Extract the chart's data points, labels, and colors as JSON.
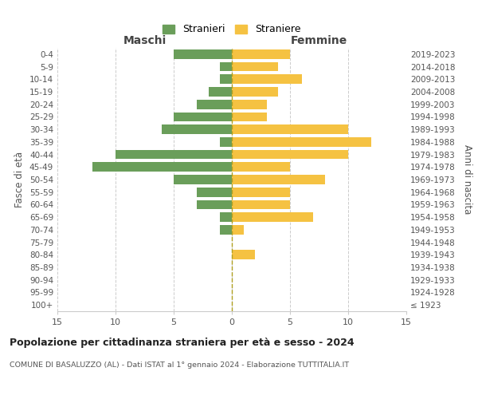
{
  "age_groups": [
    "100+",
    "95-99",
    "90-94",
    "85-89",
    "80-84",
    "75-79",
    "70-74",
    "65-69",
    "60-64",
    "55-59",
    "50-54",
    "45-49",
    "40-44",
    "35-39",
    "30-34",
    "25-29",
    "20-24",
    "15-19",
    "10-14",
    "5-9",
    "0-4"
  ],
  "birth_years": [
    "≤ 1923",
    "1924-1928",
    "1929-1933",
    "1934-1938",
    "1939-1943",
    "1944-1948",
    "1949-1953",
    "1954-1958",
    "1959-1963",
    "1964-1968",
    "1969-1973",
    "1974-1978",
    "1979-1983",
    "1984-1988",
    "1989-1993",
    "1994-1998",
    "1999-2003",
    "2004-2008",
    "2009-2013",
    "2014-2018",
    "2019-2023"
  ],
  "males": [
    0,
    0,
    0,
    0,
    0,
    0,
    1,
    1,
    3,
    3,
    5,
    12,
    10,
    1,
    6,
    5,
    3,
    2,
    1,
    1,
    5
  ],
  "females": [
    0,
    0,
    0,
    0,
    2,
    0,
    1,
    7,
    5,
    5,
    8,
    5,
    10,
    12,
    10,
    3,
    3,
    4,
    6,
    4,
    5
  ],
  "male_color": "#6a9e5a",
  "female_color": "#f5c242",
  "title": "Popolazione per cittadinanza straniera per età e sesso - 2024",
  "subtitle": "COMUNE DI BASALUZZO (AL) - Dati ISTAT al 1° gennaio 2024 - Elaborazione TUTTITALIA.IT",
  "left_label": "Maschi",
  "right_label": "Femmine",
  "y_left_label": "Fasce di età",
  "y_right_label": "Anni di nascita",
  "legend_male": "Stranieri",
  "legend_female": "Straniere",
  "xlim": 15,
  "background_color": "#ffffff",
  "grid_color": "#cccccc"
}
